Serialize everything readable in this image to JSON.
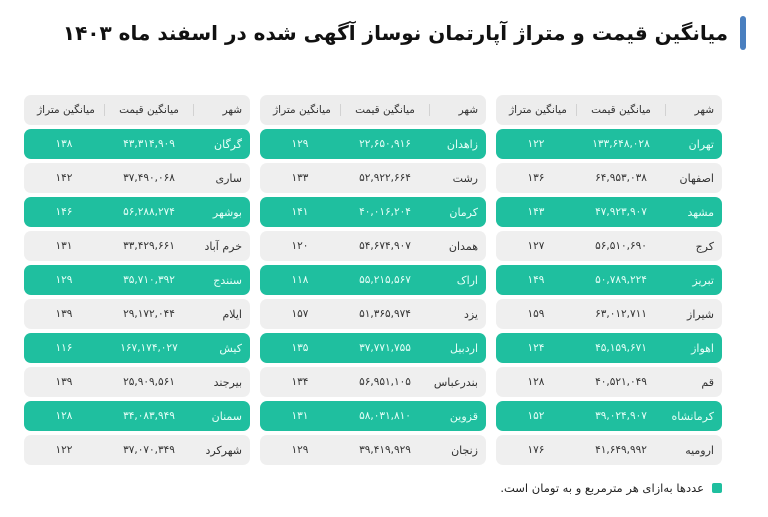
{
  "title": "میانگین قیمت و متراژ آپارتمان نوساز آگهی شده در اسفند ماه ۱۴۰۳",
  "colors": {
    "accent": "#1fbf9f",
    "title_bar": "#4a7fbf",
    "row_plain": "#efefef",
    "header": "#ededed"
  },
  "headers": {
    "city": "شهر",
    "price": "میانگین قیمت",
    "area": "میانگین متراژ"
  },
  "tables": [
    {
      "rows": [
        {
          "city": "تهران",
          "price": "۱۳۳,۶۴۸,۰۲۸",
          "area": "۱۲۲"
        },
        {
          "city": "اصفهان",
          "price": "۶۴,۹۵۳,۰۳۸",
          "area": "۱۳۶"
        },
        {
          "city": "مشهد",
          "price": "۴۷,۹۲۳,۹۰۷",
          "area": "۱۴۳"
        },
        {
          "city": "کرج",
          "price": "۵۶,۵۱۰,۶۹۰",
          "area": "۱۲۷"
        },
        {
          "city": "تبریز",
          "price": "۵۰,۷۸۹,۲۲۴",
          "area": "۱۴۹"
        },
        {
          "city": "شیراز",
          "price": "۶۳,۰۱۲,۷۱۱",
          "area": "۱۵۹"
        },
        {
          "city": "اهواز",
          "price": "۴۵,۱۵۹,۶۷۱",
          "area": "۱۲۴"
        },
        {
          "city": "قم",
          "price": "۴۰,۵۲۱,۰۴۹",
          "area": "۱۲۸"
        },
        {
          "city": "کرمانشاه",
          "price": "۳۹,۰۲۴,۹۰۷",
          "area": "۱۵۲"
        },
        {
          "city": "ارومیه",
          "price": "۴۱,۶۴۹,۹۹۲",
          "area": "۱۷۶"
        }
      ]
    },
    {
      "rows": [
        {
          "city": "زاهدان",
          "price": "۲۲,۶۵۰,۹۱۶",
          "area": "۱۲۹"
        },
        {
          "city": "رشت",
          "price": "۵۲,۹۲۲,۶۶۴",
          "area": "۱۳۳"
        },
        {
          "city": "کرمان",
          "price": "۴۰,۰۱۶,۲۰۴",
          "area": "۱۴۱"
        },
        {
          "city": "همدان",
          "price": "۵۴,۶۷۴,۹۰۷",
          "area": "۱۲۰"
        },
        {
          "city": "اراک",
          "price": "۵۵,۲۱۵,۵۶۷",
          "area": "۱۱۸"
        },
        {
          "city": "یزد",
          "price": "۵۱,۳۶۵,۹۷۴",
          "area": "۱۵۷"
        },
        {
          "city": "اردبیل",
          "price": "۳۷,۷۷۱,۷۵۵",
          "area": "۱۳۵"
        },
        {
          "city": "بندرعباس",
          "price": "۵۶,۹۵۱,۱۰۵",
          "area": "۱۳۴"
        },
        {
          "city": "قزوین",
          "price": "۵۸,۰۳۱,۸۱۰",
          "area": "۱۳۱"
        },
        {
          "city": "زنجان",
          "price": "۳۹,۴۱۹,۹۲۹",
          "area": "۱۲۹"
        }
      ]
    },
    {
      "rows": [
        {
          "city": "گرگان",
          "price": "۴۳,۳۱۴,۹۰۹",
          "area": "۱۳۸"
        },
        {
          "city": "ساری",
          "price": "۳۷,۴۹۰,۰۶۸",
          "area": "۱۴۲"
        },
        {
          "city": "بوشهر",
          "price": "۵۶,۲۸۸,۲۷۴",
          "area": "۱۴۶"
        },
        {
          "city": "خرم آباد",
          "price": "۳۳,۴۲۹,۶۶۱",
          "area": "۱۳۱"
        },
        {
          "city": "سنندج",
          "price": "۳۵,۷۱۰,۳۹۲",
          "area": "۱۲۹"
        },
        {
          "city": "ایلام",
          "price": "۲۹,۱۷۲,۰۴۴",
          "area": "۱۳۹"
        },
        {
          "city": "کیش",
          "price": "۱۶۷,۱۷۴,۰۲۷",
          "area": "۱۱۶"
        },
        {
          "city": "بیرجند",
          "price": "۲۵,۹۰۹,۵۶۱",
          "area": "۱۳۹"
        },
        {
          "city": "سمنان",
          "price": "۳۴,۰۸۳,۹۴۹",
          "area": "۱۲۸"
        },
        {
          "city": "شهرکرد",
          "price": "۳۷,۰۷۰,۳۴۹",
          "area": "۱۲۲"
        }
      ]
    }
  ],
  "footnote": "عددها به‌ازای هر مترمربع و به تومان است."
}
